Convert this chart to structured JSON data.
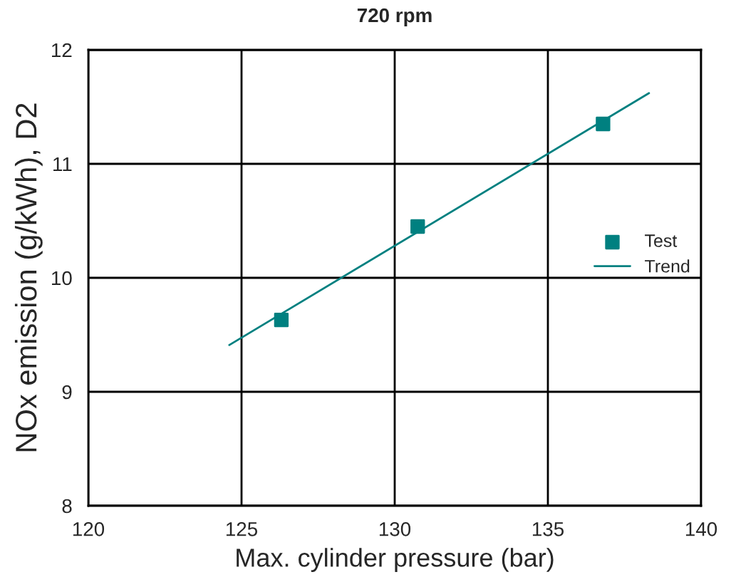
{
  "chart_data": {
    "type": "scatter",
    "title": "720 rpm",
    "xlabel": "Max. cylinder pressure (bar)",
    "ylabel": "NOx emission (g/kWh), D2",
    "series": [
      {
        "name": "Test",
        "color": "#008080",
        "marker": "square",
        "x": [
          126.3,
          130.75,
          136.8
        ],
        "values": [
          9.63,
          10.45,
          11.35
        ]
      },
      {
        "name": "Trend",
        "type": "line",
        "color": "#008080",
        "marker": "none",
        "line_style": "solid",
        "x": [
          124.6,
          138.3
        ],
        "values": [
          9.41,
          11.62
        ]
      }
    ],
    "xlim": [
      120,
      140
    ],
    "xticks": [
      120,
      125,
      130,
      135,
      140
    ],
    "ylim": [
      8,
      12
    ],
    "yticks": [
      8,
      9,
      10,
      11,
      12
    ],
    "grid": true,
    "legend": "right"
  }
}
